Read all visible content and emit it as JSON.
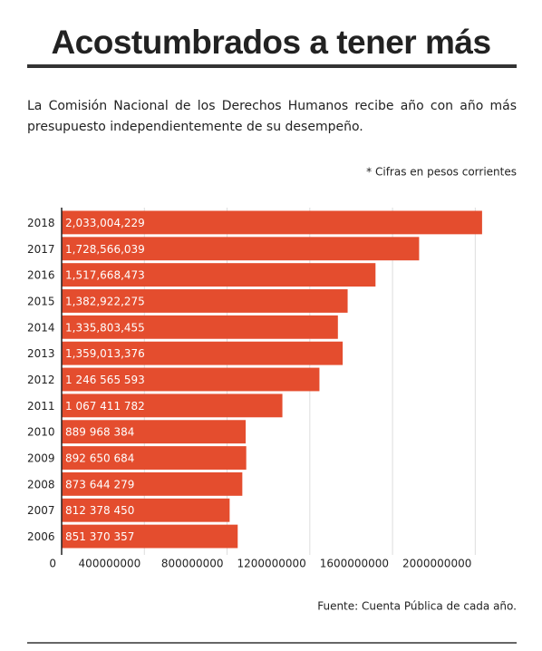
{
  "chart_data": {
    "type": "barh",
    "title": "Acostumbrados a tener más",
    "subtitle": "La Comisión Nacional de los Derechos Humanos recibe año con año más presupuesto independientemente de su desempeño.",
    "note": "* Cifras en pesos corrientes",
    "source": "Fuente: Cuenta Pública de cada año.",
    "categories": [
      "2018",
      "2017",
      "2016",
      "2015",
      "2014",
      "2013",
      "2012",
      "2011",
      "2010",
      "2009",
      "2008",
      "2007",
      "2006"
    ],
    "values": [
      2033004229,
      1728566039,
      1517668473,
      1382922275,
      1335803455,
      1359013376,
      1246565593,
      1067411782,
      889968384,
      892650684,
      873644279,
      812378450,
      851370357
    ],
    "value_labels": [
      "2,033,004,229",
      "1,728,566,039",
      "1,517,668,473",
      "1,382,922,275",
      "1,335,803,455",
      "1,359,013,376",
      "1 246 565 593",
      "1 067 411 782",
      "889 968 384",
      "892 650 684",
      "873 644 279",
      "812 378 450",
      "851 370 357"
    ],
    "color": "#e44d2e",
    "xlim": [
      0,
      2200000000
    ],
    "xticks": [
      0,
      400000000,
      800000000,
      1200000000,
      1600000000,
      2000000000
    ],
    "grid": true
  }
}
